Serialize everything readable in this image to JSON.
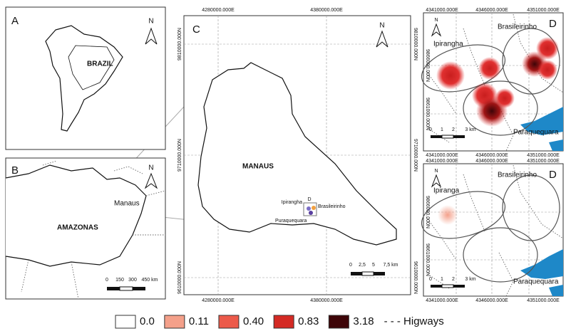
{
  "panel_a": {
    "letter": "A",
    "north": "N",
    "country": "BRAZIL"
  },
  "panel_b": {
    "letter": "B",
    "north": "N",
    "city": "Manaus",
    "state": "AMAZONAS",
    "scale": [
      "0",
      "150",
      "300",
      "450 km"
    ]
  },
  "panel_c": {
    "letter": "C",
    "north": "N",
    "x_coords": [
      "4280000.000E",
      "4380000.000E"
    ],
    "y_coords": [
      "9810000.000N",
      "9710000.000N",
      "9610000.000N"
    ],
    "city": "MANAUS",
    "area_label": "D",
    "places": [
      "Ipirangha",
      "Brasileirinho",
      "Puraquequara"
    ],
    "scale": [
      "0",
      "2,5",
      "5",
      "7,5 km"
    ]
  },
  "panel_d_top": {
    "letter": "D",
    "north": "N",
    "x_coords": [
      "4341000.000E",
      "4346000.000E",
      "4351000.000E"
    ],
    "y_coords": [
      "9866000.000N",
      "9861000.000N"
    ],
    "places": [
      "Ipirangha",
      "Brasileirinho",
      "Paraquequara"
    ],
    "scale": [
      "0",
      "1",
      "2",
      "3 km"
    ]
  },
  "panel_d_bottom": {
    "letter": "D",
    "north": "N",
    "x_coords": [
      "4341000.000E",
      "4346000.000E",
      "4351000.000E"
    ],
    "y_coords": [
      "9866000.000N",
      "9861000.000N"
    ],
    "places": [
      "Ipiranga",
      "Brasileirinho",
      "Paraquequara"
    ],
    "scale": [
      "0",
      "1",
      "2",
      "3 km"
    ]
  },
  "legend": {
    "items": [
      {
        "label": "0.0",
        "color": "#ffffff"
      },
      {
        "label": "0.11",
        "color": "#f4a08a"
      },
      {
        "label": "0.40",
        "color": "#ec5a4a"
      },
      {
        "label": "0.83",
        "color": "#d42a24"
      },
      {
        "label": "3.18",
        "color": "#3e0508"
      }
    ],
    "highways": "- - - Higways"
  }
}
